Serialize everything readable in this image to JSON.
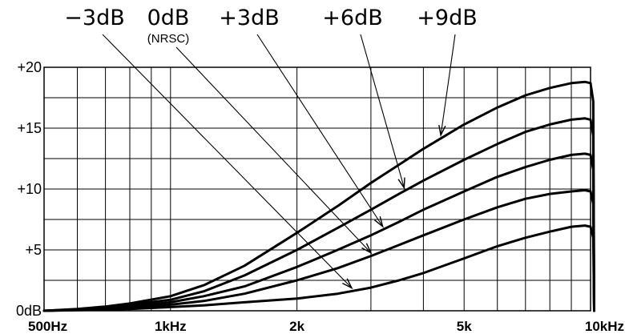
{
  "chart_data": {
    "type": "line",
    "x_scale": "log",
    "x_unit": "Hz",
    "xlim": [
      500,
      10000
    ],
    "ylim": [
      0,
      20
    ],
    "grid": true,
    "x_ticks": [
      {
        "value": 500,
        "label": "500Hz"
      },
      {
        "value": 1000,
        "label": "1kHz"
      },
      {
        "value": 2000,
        "label": "2k"
      },
      {
        "value": 5000,
        "label": "5k"
      },
      {
        "value": 10000,
        "label": "10kHz"
      }
    ],
    "y_ticks": [
      {
        "value": 0,
        "label": "0dB"
      },
      {
        "value": 5,
        "label": "+5"
      },
      {
        "value": 10,
        "label": "+10"
      },
      {
        "value": 15,
        "label": "+15"
      },
      {
        "value": 20,
        "label": "+20"
      }
    ],
    "x_grid_lines": [
      500,
      600,
      700,
      800,
      900,
      1000,
      2000,
      3000,
      4000,
      5000,
      6000,
      7000,
      8000,
      9000,
      10000
    ],
    "y_grid_lines": [
      0,
      2.5,
      5,
      7.5,
      10,
      12.5,
      15,
      17.5,
      20
    ],
    "series": [
      {
        "name": "−3dB",
        "sublabel": "",
        "points": [
          [
            500,
            0
          ],
          [
            600,
            0.05
          ],
          [
            700,
            0.1
          ],
          [
            800,
            0.15
          ],
          [
            1000,
            0.3
          ],
          [
            1200,
            0.45
          ],
          [
            1500,
            0.7
          ],
          [
            2000,
            1.0
          ],
          [
            2500,
            1.4
          ],
          [
            3000,
            1.9
          ],
          [
            3500,
            2.5
          ],
          [
            4000,
            3.1
          ],
          [
            5000,
            4.3
          ],
          [
            6000,
            5.3
          ],
          [
            7000,
            6.0
          ],
          [
            8000,
            6.5
          ],
          [
            9000,
            6.9
          ],
          [
            9700,
            7.0
          ],
          [
            10000,
            6.9
          ],
          [
            10150,
            6.0
          ],
          [
            10200,
            0
          ]
        ],
        "pointer_at": 2700
      },
      {
        "name": "0dB",
        "sublabel": "(NRSC)",
        "points": [
          [
            500,
            0
          ],
          [
            600,
            0.07
          ],
          [
            700,
            0.15
          ],
          [
            800,
            0.25
          ],
          [
            1000,
            0.5
          ],
          [
            1200,
            0.8
          ],
          [
            1500,
            1.4
          ],
          [
            2000,
            2.5
          ],
          [
            2500,
            3.5
          ],
          [
            3000,
            4.5
          ],
          [
            3500,
            5.4
          ],
          [
            4000,
            6.2
          ],
          [
            5000,
            7.5
          ],
          [
            6000,
            8.5
          ],
          [
            7000,
            9.2
          ],
          [
            8000,
            9.6
          ],
          [
            9000,
            9.8
          ],
          [
            9700,
            9.9
          ],
          [
            10000,
            9.8
          ],
          [
            10150,
            8.8
          ],
          [
            10200,
            0
          ]
        ],
        "pointer_at": 3000
      },
      {
        "name": "+3dB",
        "sublabel": "",
        "points": [
          [
            500,
            0
          ],
          [
            600,
            0.1
          ],
          [
            700,
            0.2
          ],
          [
            800,
            0.35
          ],
          [
            1000,
            0.7
          ],
          [
            1200,
            1.2
          ],
          [
            1500,
            2.0
          ],
          [
            2000,
            3.6
          ],
          [
            2500,
            5.0
          ],
          [
            3000,
            6.2
          ],
          [
            3500,
            7.3
          ],
          [
            4000,
            8.3
          ],
          [
            5000,
            9.8
          ],
          [
            6000,
            11.0
          ],
          [
            7000,
            11.8
          ],
          [
            8000,
            12.4
          ],
          [
            9000,
            12.8
          ],
          [
            9700,
            12.9
          ],
          [
            10000,
            12.8
          ],
          [
            10150,
            11.6
          ],
          [
            10200,
            0
          ]
        ],
        "pointer_at": 3200
      },
      {
        "name": "+6dB",
        "sublabel": "",
        "points": [
          [
            500,
            0
          ],
          [
            600,
            0.12
          ],
          [
            700,
            0.28
          ],
          [
            800,
            0.5
          ],
          [
            1000,
            0.9
          ],
          [
            1200,
            1.6
          ],
          [
            1500,
            2.9
          ],
          [
            2000,
            5.0
          ],
          [
            2500,
            6.8
          ],
          [
            3000,
            8.3
          ],
          [
            3500,
            9.6
          ],
          [
            4000,
            10.7
          ],
          [
            5000,
            12.4
          ],
          [
            6000,
            13.7
          ],
          [
            7000,
            14.7
          ],
          [
            8000,
            15.3
          ],
          [
            9000,
            15.7
          ],
          [
            9700,
            15.8
          ],
          [
            10000,
            15.7
          ],
          [
            10150,
            14.4
          ],
          [
            10200,
            0
          ]
        ],
        "pointer_at": 3600
      },
      {
        "name": "+9dB",
        "sublabel": "",
        "points": [
          [
            500,
            0
          ],
          [
            600,
            0.15
          ],
          [
            700,
            0.35
          ],
          [
            800,
            0.6
          ],
          [
            1000,
            1.2
          ],
          [
            1200,
            2.1
          ],
          [
            1500,
            3.7
          ],
          [
            2000,
            6.4
          ],
          [
            2500,
            8.6
          ],
          [
            3000,
            10.5
          ],
          [
            3500,
            12.0
          ],
          [
            4000,
            13.3
          ],
          [
            5000,
            15.3
          ],
          [
            6000,
            16.7
          ],
          [
            7000,
            17.7
          ],
          [
            8000,
            18.3
          ],
          [
            9000,
            18.7
          ],
          [
            9700,
            18.8
          ],
          [
            10000,
            18.7
          ],
          [
            10150,
            17.2
          ],
          [
            10200,
            0
          ]
        ],
        "pointer_at": 4400
      }
    ]
  }
}
